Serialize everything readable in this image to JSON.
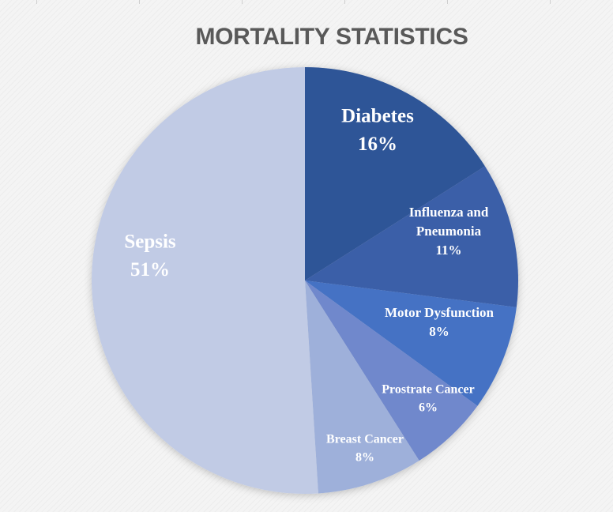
{
  "chart_data": {
    "type": "pie",
    "title": "MORTALITY STATISTICS",
    "start_angle_deg": 0,
    "direction": "clockwise",
    "slices": [
      {
        "label_lines": [
          "Diabetes"
        ],
        "pct_label": "16%",
        "value": 16,
        "color": "#2f5597"
      },
      {
        "label_lines": [
          "Influenza and",
          "Pneumonia"
        ],
        "pct_label": "11%",
        "value": 11,
        "color": "#3a5ea8"
      },
      {
        "label_lines": [
          "Motor Dysfunction"
        ],
        "pct_label": "8%",
        "value": 8,
        "color": "#4472c4"
      },
      {
        "label_lines": [
          "Prostrate Cancer"
        ],
        "pct_label": "6%",
        "value": 6,
        "color": "#7088cc"
      },
      {
        "label_lines": [
          "Breast Cancer"
        ],
        "pct_label": "8%",
        "value": 8,
        "color": "#9eb0da"
      },
      {
        "label_lines": [
          "Sepsis"
        ],
        "pct_label": "51%",
        "value": 51,
        "color": "#c1cbe5"
      }
    ]
  }
}
